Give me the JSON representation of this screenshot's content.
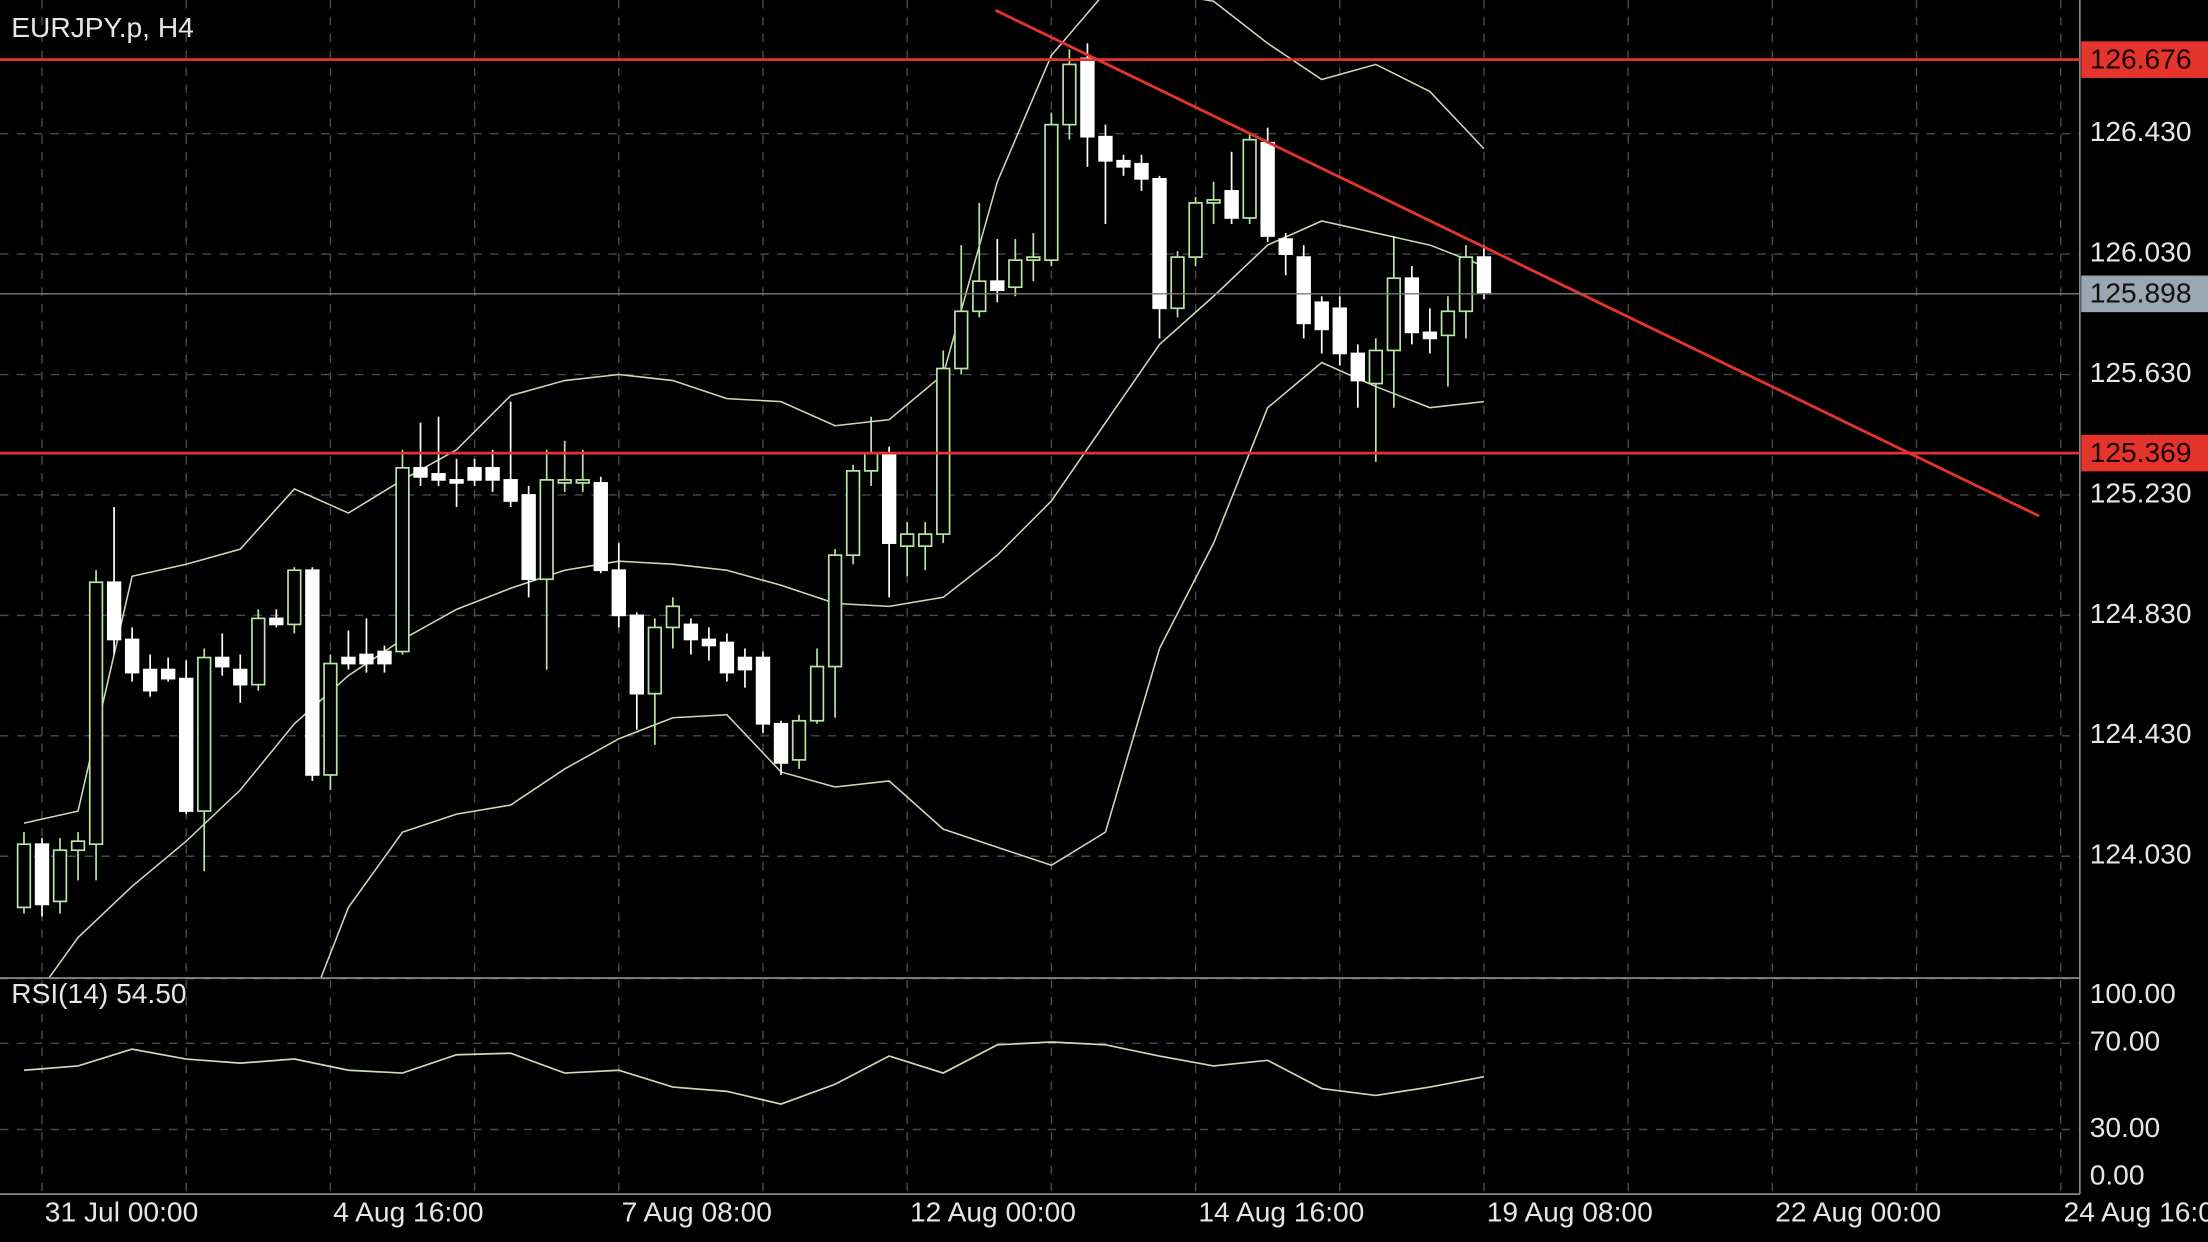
{
  "chart_data": [
    {
      "type": "candlestick",
      "title": "EURJPY.p, H4",
      "xlim": [
        -1.33,
        114.06
      ],
      "ylim": [
        123.628,
        126.874
      ],
      "yticks": [
        {
          "value": 124.03,
          "label": "124.030"
        },
        {
          "value": 124.43,
          "label": "124.430"
        },
        {
          "value": 124.83,
          "label": "124.830"
        },
        {
          "value": 125.23,
          "label": "125.230"
        },
        {
          "value": 125.63,
          "label": "125.630"
        },
        {
          "value": 126.03,
          "label": "126.030"
        },
        {
          "value": 126.43,
          "label": "126.430"
        }
      ],
      "grid": true,
      "up_color": "#b9e6a4",
      "down_color": "#ffffff",
      "open": [
        123.86,
        124.07,
        123.88,
        124.05,
        124.07,
        124.94,
        124.75,
        124.65,
        124.65,
        124.62,
        124.18,
        124.69,
        124.65,
        124.6,
        124.82,
        124.8,
        124.98,
        124.3,
        124.69,
        124.7,
        124.71,
        124.71,
        125.32,
        125.3,
        125.28,
        125.32,
        125.32,
        125.28,
        125.23,
        124.95,
        125.27,
        125.27,
        125.27,
        124.98,
        124.83,
        124.57,
        124.79,
        124.8,
        124.75,
        124.74,
        124.69,
        124.69,
        124.47,
        124.35,
        124.48,
        124.66,
        125.03,
        125.31,
        125.37,
        125.06,
        125.06,
        125.1,
        125.65,
        125.84,
        125.94,
        125.92,
        126.01,
        126.01,
        126.46,
        126.68,
        126.42,
        126.34,
        126.33,
        126.28,
        125.85,
        126.02,
        126.2,
        126.24,
        126.15,
        126.4,
        126.08,
        126.02,
        125.87,
        125.85,
        125.7,
        125.6,
        125.71,
        125.95,
        125.77,
        125.76,
        125.84,
        126.02
      ],
      "high": [
        124.11,
        124.09,
        124.09,
        124.11,
        124.98,
        125.19,
        124.79,
        124.7,
        124.69,
        124.68,
        124.72,
        124.77,
        124.7,
        124.85,
        124.85,
        124.99,
        124.99,
        124.7,
        124.78,
        124.82,
        124.73,
        125.38,
        125.47,
        125.49,
        125.35,
        125.35,
        125.38,
        125.54,
        125.26,
        125.38,
        125.41,
        125.38,
        125.29,
        125.07,
        124.84,
        124.82,
        124.89,
        124.82,
        124.79,
        124.77,
        124.72,
        124.71,
        124.48,
        124.5,
        124.72,
        125.05,
        125.33,
        125.49,
        125.39,
        125.14,
        125.14,
        125.71,
        126.06,
        126.2,
        126.08,
        126.08,
        126.1,
        126.5,
        126.71,
        126.73,
        126.46,
        126.36,
        126.36,
        126.29,
        126.04,
        126.22,
        126.27,
        126.37,
        126.43,
        126.45,
        126.1,
        126.06,
        125.89,
        125.89,
        125.73,
        125.75,
        126.09,
        125.99,
        125.85,
        125.89,
        126.06,
        126.06
      ],
      "low": [
        123.84,
        123.83,
        123.84,
        123.95,
        123.95,
        124.7,
        124.61,
        124.56,
        124.61,
        124.17,
        123.98,
        124.63,
        124.54,
        124.58,
        124.79,
        124.77,
        124.28,
        124.25,
        124.65,
        124.64,
        124.64,
        124.7,
        125.26,
        125.26,
        125.19,
        125.26,
        125.24,
        125.19,
        124.89,
        124.65,
        125.24,
        125.24,
        124.97,
        124.79,
        124.45,
        124.4,
        124.72,
        124.7,
        124.68,
        124.61,
        124.59,
        124.44,
        124.3,
        124.32,
        124.47,
        124.49,
        125.0,
        125.26,
        124.89,
        124.96,
        124.98,
        125.07,
        125.63,
        125.82,
        125.87,
        125.89,
        125.94,
        125.99,
        126.41,
        126.32,
        126.13,
        126.29,
        126.24,
        125.75,
        125.82,
        125.99,
        126.13,
        126.13,
        126.13,
        126.07,
        125.96,
        125.75,
        125.7,
        125.66,
        125.52,
        125.34,
        125.52,
        125.73,
        125.7,
        125.59,
        125.75,
        125.88
      ],
      "close": [
        124.07,
        123.87,
        124.05,
        124.08,
        124.94,
        124.75,
        124.64,
        124.58,
        124.62,
        124.18,
        124.69,
        124.66,
        124.6,
        124.82,
        124.8,
        124.98,
        124.3,
        124.67,
        124.67,
        124.67,
        124.67,
        125.32,
        125.29,
        125.28,
        125.27,
        125.28,
        125.28,
        125.21,
        124.95,
        125.28,
        125.28,
        125.28,
        124.98,
        124.83,
        124.57,
        124.79,
        124.86,
        124.75,
        124.73,
        124.64,
        124.65,
        124.47,
        124.34,
        124.48,
        124.66,
        125.03,
        125.31,
        125.37,
        125.07,
        125.1,
        125.1,
        125.65,
        125.84,
        125.94,
        125.91,
        126.01,
        126.02,
        126.46,
        126.66,
        126.42,
        126.34,
        126.32,
        126.28,
        125.85,
        126.02,
        126.2,
        126.21,
        126.15,
        126.41,
        126.09,
        126.03,
        125.8,
        125.78,
        125.7,
        125.61,
        125.71,
        125.95,
        125.77,
        125.75,
        125.84,
        126.02,
        125.9
      ],
      "overlays": [
        {
          "color": "#c9dcb8",
          "x": [
            0,
            3,
            6,
            9,
            12,
            15,
            18,
            21,
            24,
            27,
            30,
            33,
            36,
            39,
            42,
            45,
            48,
            51,
            54,
            57,
            60,
            63,
            66,
            69,
            72,
            75,
            78,
            81
          ],
          "values": [
            124.14,
            124.18,
            124.96,
            125.0,
            125.05,
            125.25,
            125.17,
            125.28,
            125.38,
            125.56,
            125.61,
            125.63,
            125.61,
            125.55,
            125.54,
            125.46,
            125.48,
            125.63,
            126.27,
            126.69,
            126.9,
            126.9,
            126.87,
            126.73,
            126.61,
            126.66,
            126.57,
            126.38
          ]
        },
        {
          "color": "#c9dcb8",
          "x": [
            0,
            3,
            6,
            9,
            12,
            15,
            18,
            21,
            24,
            27,
            30,
            33,
            36,
            39,
            42,
            45,
            48,
            51,
            54,
            57,
            60,
            63,
            66,
            69,
            72,
            75,
            78,
            81
          ],
          "values": [
            123.51,
            123.76,
            123.93,
            124.08,
            124.25,
            124.47,
            124.63,
            124.75,
            124.85,
            124.92,
            124.98,
            125.01,
            125.0,
            124.98,
            124.93,
            124.87,
            124.86,
            124.89,
            125.03,
            125.21,
            125.47,
            125.73,
            125.89,
            126.06,
            126.14,
            126.1,
            126.06,
            125.99
          ]
        },
        {
          "color": "#c9dcb8",
          "x": [
            15,
            18,
            21,
            24,
            27,
            30,
            33,
            36,
            39,
            42,
            45,
            48,
            51,
            54,
            57,
            60,
            63,
            66,
            69,
            72,
            75,
            78,
            81
          ],
          "values": [
            123.4,
            123.86,
            124.11,
            124.17,
            124.2,
            124.32,
            124.42,
            124.49,
            124.5,
            124.31,
            124.26,
            124.28,
            124.12,
            124.06,
            124.0,
            124.11,
            124.72,
            125.07,
            125.52,
            125.67,
            125.59,
            125.52,
            125.54
          ]
        }
      ],
      "levels": [
        {
          "value": 126.676,
          "label": "126.676",
          "color": "#e4342c"
        },
        {
          "value": 125.369,
          "label": "125.369",
          "color": "#e4342c"
        }
      ],
      "current_price": {
        "value": 125.898,
        "label": "125.898",
        "color": "#9aa6b2"
      },
      "trendline": {
        "x": [
          53.9,
          111.8
        ],
        "values": [
          126.84,
          125.16
        ],
        "color": "#e4342c"
      }
    },
    {
      "type": "line",
      "title": "RSI(14) 54.50",
      "color": "#c9dcb8",
      "xlim": [
        -1.33,
        114.06
      ],
      "ylim": [
        0,
        100
      ],
      "yticks": [
        {
          "value": 0,
          "label": "0.00"
        },
        {
          "value": 30,
          "label": "30.00"
        },
        {
          "value": 70,
          "label": "70.00"
        },
        {
          "value": 100,
          "label": "100.00"
        }
      ],
      "xticks": [
        {
          "value": 1,
          "label": "31 Jul 00:00"
        },
        {
          "value": 17,
          "label": "4 Aug 16:00"
        },
        {
          "value": 33,
          "label": "7 Aug 08:00"
        },
        {
          "value": 49,
          "label": "12 Aug 00:00"
        },
        {
          "value": 65,
          "label": "14 Aug 16:00"
        },
        {
          "value": 81,
          "label": "19 Aug 08:00"
        },
        {
          "value": 97,
          "label": "22 Aug 00:00"
        },
        {
          "value": 113,
          "label": "24 Aug 16:00"
        }
      ],
      "x": [
        0,
        3,
        6,
        9,
        12,
        15,
        18,
        21,
        24,
        27,
        30,
        33,
        36,
        39,
        42,
        45,
        48,
        51,
        54,
        57,
        60,
        63,
        66,
        69,
        72,
        75,
        78,
        81
      ],
      "values": [
        57.5,
        59.5,
        67.3,
        62.7,
        60.8,
        62.7,
        57.5,
        56.2,
        64.7,
        65.4,
        56.2,
        57.5,
        49.7,
        47.7,
        41.8,
        51.0,
        64.1,
        56.2,
        69.3,
        70.6,
        69.3,
        64.1,
        59.5,
        62.1,
        49.0,
        45.8,
        49.7,
        54.5
      ]
    }
  ]
}
